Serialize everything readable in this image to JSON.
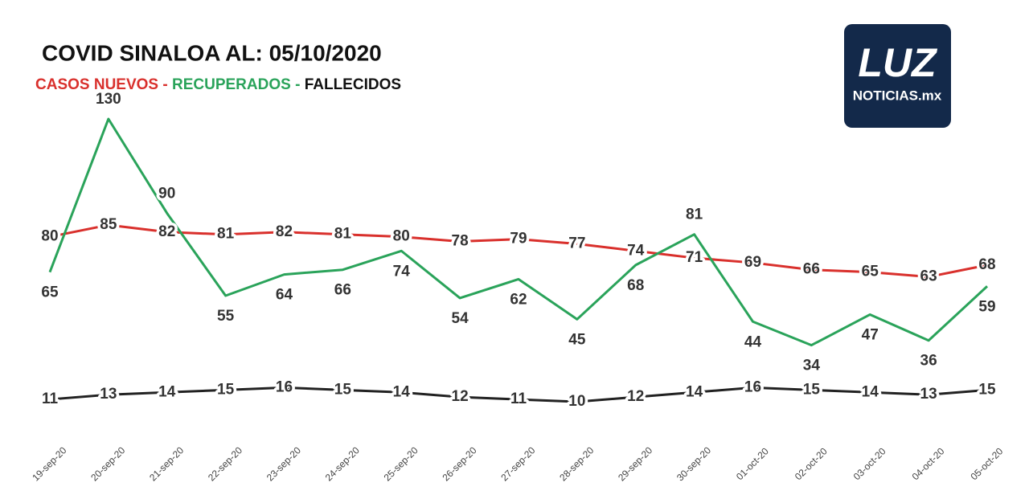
{
  "chart_data": {
    "type": "line",
    "title": "COVID SINALOA AL: 05/10/2020",
    "legend_separator": "-",
    "categories": [
      "19-sep-20",
      "20-sep-20",
      "21-sep-20",
      "22-sep-20",
      "23-sep-20",
      "24-sep-20",
      "25-sep-20",
      "26-sep-20",
      "27-sep-20",
      "28-sep-20",
      "29-sep-20",
      "30-sep-20",
      "01-oct-20",
      "02-oct-20",
      "03-oct-20",
      "04-oct-20",
      "05-oct-20"
    ],
    "series": [
      {
        "name": "CASOS NUEVOS",
        "color": "#d9302c",
        "values": [
          80,
          85,
          82,
          81,
          82,
          81,
          80,
          78,
          79,
          77,
          74,
          71,
          69,
          66,
          65,
          63,
          68
        ]
      },
      {
        "name": "RECUPERADOS",
        "color": "#2aa35a",
        "values": [
          65,
          130,
          90,
          55,
          64,
          66,
          74,
          54,
          62,
          45,
          68,
          81,
          44,
          34,
          47,
          36,
          59
        ]
      },
      {
        "name": "FALLECIDOS",
        "color": "#222222",
        "values": [
          11,
          13,
          14,
          15,
          16,
          15,
          14,
          12,
          11,
          10,
          12,
          14,
          16,
          15,
          14,
          13,
          15
        ]
      }
    ]
  },
  "logo": {
    "name": "LUZ",
    "tagline": "NOTICIAS.mx"
  }
}
